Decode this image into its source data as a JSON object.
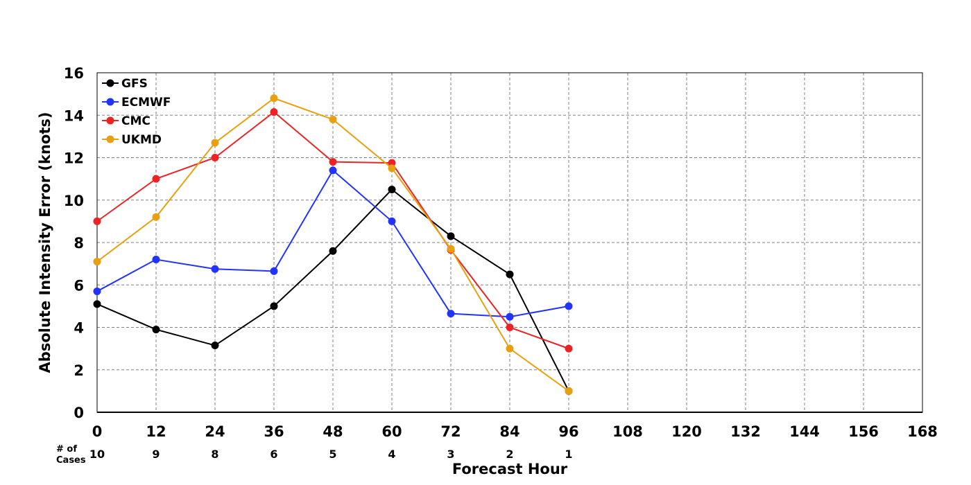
{
  "chart_data": {
    "type": "line",
    "title": "",
    "xlabel": "Forecast Hour",
    "ylabel": "Absolute Intensity Error (knots)",
    "xlim": [
      0,
      168
    ],
    "ylim": [
      0,
      16
    ],
    "x_ticks": [
      0,
      12,
      24,
      36,
      48,
      60,
      72,
      84,
      96,
      108,
      120,
      132,
      144,
      156,
      168
    ],
    "y_ticks": [
      0,
      2,
      4,
      6,
      8,
      10,
      12,
      14,
      16
    ],
    "grid": true,
    "legend_position": "top-left",
    "cases_label_line1": "# of",
    "cases_label_line2": "Cases",
    "cases": [
      {
        "x": 0,
        "n": "10"
      },
      {
        "x": 12,
        "n": "9"
      },
      {
        "x": 24,
        "n": "8"
      },
      {
        "x": 36,
        "n": "6"
      },
      {
        "x": 48,
        "n": "5"
      },
      {
        "x": 60,
        "n": "4"
      },
      {
        "x": 72,
        "n": "3"
      },
      {
        "x": 84,
        "n": "2"
      },
      {
        "x": 96,
        "n": "1"
      }
    ],
    "series": [
      {
        "name": "GFS",
        "color": "#000000",
        "x": [
          0,
          12,
          24,
          36,
          48,
          60,
          72,
          84,
          96
        ],
        "values": [
          5.1,
          3.9,
          3.15,
          5.0,
          7.6,
          10.5,
          8.3,
          6.5,
          1.0
        ]
      },
      {
        "name": "ECMWF",
        "color": "#2233ff",
        "x": [
          0,
          12,
          24,
          36,
          48,
          60,
          72,
          84,
          96
        ],
        "values": [
          5.7,
          7.2,
          6.75,
          6.65,
          11.4,
          9.0,
          4.65,
          4.5,
          5.0
        ]
      },
      {
        "name": "CMC",
        "color": "#ee2222",
        "x": [
          0,
          12,
          24,
          36,
          48,
          60,
          72,
          84,
          96
        ],
        "values": [
          9.0,
          11.0,
          12.0,
          14.15,
          11.8,
          11.75,
          7.65,
          4.0,
          3.0
        ]
      },
      {
        "name": "UKMD",
        "color": "#e8a010",
        "x": [
          0,
          12,
          24,
          36,
          48,
          60,
          72,
          84,
          96
        ],
        "values": [
          7.1,
          9.2,
          12.7,
          14.8,
          13.8,
          11.5,
          7.7,
          3.0,
          1.0
        ]
      }
    ]
  }
}
